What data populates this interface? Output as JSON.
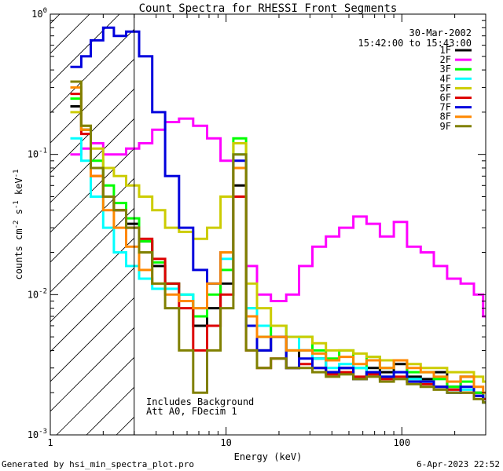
{
  "chart_data": {
    "type": "line",
    "title": "Count Spectra for RHESSI Front Segments",
    "xlabel": "Energy (keV)",
    "ylabel": "counts cm",
    "ylabel_sup1": "-2",
    "ylabel_mid": " s",
    "ylabel_sup2": "-1",
    "ylabel_end": " keV",
    "ylabel_sup3": "-1",
    "x_scale": "log",
    "y_scale": "log",
    "xlim": [
      1,
      300
    ],
    "ylim": [
      0.001,
      1
    ],
    "x_ticks": [
      {
        "value": 1,
        "label": "1"
      },
      {
        "value": 10,
        "label": "10"
      },
      {
        "value": 100,
        "label": "100"
      }
    ],
    "y_ticks": [
      {
        "value": 1,
        "base": "10",
        "exp": "0"
      },
      {
        "value": 0.1,
        "base": "10",
        "exp": "-1"
      },
      {
        "value": 0.01,
        "base": "10",
        "exp": "-2"
      },
      {
        "value": 0.001,
        "base": "10",
        "exp": "-3"
      }
    ],
    "shaded_region": {
      "from": 1,
      "to": 3
    },
    "annotations": {
      "date": "30-Mar-2002",
      "time_range": "15:42:00 to 15:43:00",
      "note1": "Includes Background",
      "note2": "Att A0, FDecim 1"
    },
    "legend_position": "top-right",
    "series": [
      {
        "name": "1F",
        "color": "#000000",
        "x": [
          1.3,
          1.5,
          1.7,
          2.0,
          2.3,
          2.7,
          3.2,
          3.8,
          4.5,
          5.4,
          6.5,
          7.8,
          9.3,
          11,
          13,
          15,
          18,
          22,
          26,
          31,
          37,
          44,
          53,
          63,
          75,
          90,
          107,
          128,
          152,
          181,
          216,
          257,
          290
        ],
        "y": [
          0.22,
          0.15,
          0.08,
          0.05,
          0.04,
          0.032,
          0.024,
          0.016,
          0.012,
          0.009,
          0.006,
          0.008,
          0.012,
          0.06,
          0.006,
          0.004,
          0.005,
          0.003,
          0.004,
          0.0035,
          0.0028,
          0.003,
          0.0025,
          0.003,
          0.0028,
          0.0032,
          0.0026,
          0.0025,
          0.0028,
          0.0022,
          0.0026,
          0.002,
          0.0018
        ]
      },
      {
        "name": "2F",
        "color": "#ff00ff",
        "x": [
          1.3,
          1.5,
          1.7,
          2.0,
          2.3,
          2.7,
          3.2,
          3.8,
          4.5,
          5.4,
          6.5,
          7.8,
          9.3,
          11,
          13,
          15,
          18,
          22,
          26,
          31,
          37,
          44,
          53,
          63,
          75,
          90,
          107,
          128,
          152,
          181,
          216,
          257,
          290
        ],
        "y": [
          0.1,
          0.11,
          0.12,
          0.1,
          0.1,
          0.11,
          0.12,
          0.15,
          0.17,
          0.18,
          0.16,
          0.13,
          0.09,
          0.05,
          0.016,
          0.01,
          0.009,
          0.01,
          0.016,
          0.022,
          0.026,
          0.03,
          0.036,
          0.032,
          0.026,
          0.033,
          0.022,
          0.02,
          0.016,
          0.013,
          0.012,
          0.01,
          0.007
        ]
      },
      {
        "name": "3F",
        "color": "#00ff00",
        "x": [
          1.3,
          1.5,
          1.7,
          2.0,
          2.3,
          2.7,
          3.2,
          3.8,
          4.5,
          5.4,
          6.5,
          7.8,
          9.3,
          11,
          13,
          15,
          18,
          22,
          26,
          31,
          37,
          44,
          53,
          63,
          75,
          90,
          107,
          128,
          152,
          181,
          216,
          257,
          290
        ],
        "y": [
          0.25,
          0.15,
          0.09,
          0.06,
          0.045,
          0.035,
          0.024,
          0.017,
          0.012,
          0.01,
          0.007,
          0.01,
          0.015,
          0.13,
          0.008,
          0.005,
          0.006,
          0.004,
          0.005,
          0.004,
          0.0035,
          0.004,
          0.003,
          0.0036,
          0.003,
          0.0034,
          0.0028,
          0.0028,
          0.0025,
          0.0022,
          0.0024,
          0.002,
          0.0018
        ]
      },
      {
        "name": "4F",
        "color": "#00ffff",
        "x": [
          1.3,
          1.5,
          1.7,
          2.0,
          2.3,
          2.7,
          3.2,
          3.8,
          4.5,
          5.4,
          6.5,
          7.8,
          9.3,
          11,
          13,
          15,
          18,
          22,
          26,
          31,
          37,
          44,
          53,
          63,
          75,
          90,
          107,
          128,
          152,
          181,
          216,
          257,
          290
        ],
        "y": [
          0.13,
          0.09,
          0.05,
          0.03,
          0.02,
          0.016,
          0.013,
          0.011,
          0.011,
          0.01,
          0.008,
          0.012,
          0.018,
          0.1,
          0.008,
          0.006,
          0.006,
          0.005,
          0.004,
          0.0035,
          0.003,
          0.0032,
          0.003,
          0.0028,
          0.0026,
          0.0028,
          0.0025,
          0.0024,
          0.0022,
          0.002,
          0.0021,
          0.0019,
          0.0017
        ]
      },
      {
        "name": "5F",
        "color": "#cccc00",
        "x": [
          1.3,
          1.5,
          1.7,
          2.0,
          2.3,
          2.7,
          3.2,
          3.8,
          4.5,
          5.4,
          6.5,
          7.8,
          9.3,
          11,
          13,
          15,
          18,
          22,
          26,
          31,
          37,
          44,
          53,
          63,
          75,
          90,
          107,
          128,
          152,
          181,
          216,
          257,
          290
        ],
        "y": [
          0.2,
          0.16,
          0.11,
          0.08,
          0.07,
          0.06,
          0.05,
          0.04,
          0.03,
          0.028,
          0.025,
          0.03,
          0.05,
          0.12,
          0.012,
          0.008,
          0.006,
          0.005,
          0.005,
          0.0045,
          0.004,
          0.004,
          0.0038,
          0.0036,
          0.0034,
          0.0034,
          0.0032,
          0.003,
          0.003,
          0.0028,
          0.0028,
          0.0026,
          0.0024
        ]
      },
      {
        "name": "6F",
        "color": "#dd0000",
        "x": [
          1.3,
          1.5,
          1.7,
          2.0,
          2.3,
          2.7,
          3.2,
          3.8,
          4.5,
          5.4,
          6.5,
          7.8,
          9.3,
          11,
          13,
          15,
          18,
          22,
          26,
          31,
          37,
          44,
          53,
          63,
          75,
          90,
          107,
          128,
          152,
          181,
          216,
          257,
          290
        ],
        "y": [
          0.27,
          0.14,
          0.07,
          0.05,
          0.04,
          0.03,
          0.025,
          0.018,
          0.012,
          0.008,
          0.004,
          0.006,
          0.01,
          0.05,
          0.004,
          0.003,
          0.0035,
          0.003,
          0.0032,
          0.003,
          0.0027,
          0.0028,
          0.0026,
          0.0027,
          0.0025,
          0.0026,
          0.0024,
          0.0023,
          0.0022,
          0.0021,
          0.002,
          0.0019,
          0.0018
        ]
      },
      {
        "name": "7F",
        "color": "#0000dd",
        "x": [
          1.3,
          1.5,
          1.7,
          2.0,
          2.3,
          2.7,
          3.2,
          3.8,
          4.5,
          5.4,
          6.5,
          7.8,
          9.3,
          11,
          13,
          15,
          18,
          22,
          26,
          31,
          37,
          44,
          53,
          63,
          75,
          90,
          107,
          128,
          152,
          181,
          216,
          257,
          290
        ],
        "y": [
          0.42,
          0.5,
          0.65,
          0.8,
          0.7,
          0.75,
          0.5,
          0.2,
          0.07,
          0.03,
          0.015,
          0.012,
          0.02,
          0.09,
          0.006,
          0.004,
          0.005,
          0.003,
          0.0035,
          0.003,
          0.0028,
          0.003,
          0.0025,
          0.0028,
          0.0026,
          0.0028,
          0.0024,
          0.0024,
          0.0022,
          0.002,
          0.0022,
          0.0019,
          0.0017
        ]
      },
      {
        "name": "8F",
        "color": "#ff8800",
        "x": [
          1.3,
          1.5,
          1.7,
          2.0,
          2.3,
          2.7,
          3.2,
          3.8,
          4.5,
          5.4,
          6.5,
          7.8,
          9.3,
          11,
          13,
          15,
          18,
          22,
          26,
          31,
          37,
          44,
          53,
          63,
          75,
          90,
          107,
          128,
          152,
          181,
          216,
          257,
          290
        ],
        "y": [
          0.3,
          0.15,
          0.07,
          0.04,
          0.03,
          0.022,
          0.015,
          0.012,
          0.01,
          0.009,
          0.008,
          0.012,
          0.02,
          0.08,
          0.007,
          0.005,
          0.005,
          0.004,
          0.004,
          0.0038,
          0.0034,
          0.0036,
          0.0032,
          0.0034,
          0.003,
          0.0034,
          0.003,
          0.0028,
          0.0026,
          0.0024,
          0.0026,
          0.0022,
          0.002
        ]
      },
      {
        "name": "9F",
        "color": "#808000",
        "x": [
          1.3,
          1.5,
          1.7,
          2.0,
          2.3,
          2.7,
          3.2,
          3.8,
          4.5,
          5.4,
          6.5,
          7.8,
          9.3,
          11,
          13,
          15,
          18,
          22,
          26,
          31,
          37,
          44,
          53,
          63,
          75,
          90,
          107,
          128,
          152,
          181,
          216,
          257,
          290
        ],
        "y": [
          0.33,
          0.16,
          0.08,
          0.05,
          0.04,
          0.03,
          0.02,
          0.012,
          0.008,
          0.004,
          0.002,
          0.004,
          0.008,
          0.1,
          0.004,
          0.003,
          0.0035,
          0.003,
          0.003,
          0.0028,
          0.0026,
          0.0027,
          0.0025,
          0.0026,
          0.0024,
          0.0025,
          0.0023,
          0.0022,
          0.0021,
          0.002,
          0.002,
          0.0018,
          0.0017
        ]
      }
    ]
  },
  "footer": {
    "left": "Generated by hsi_min_spectra_plot.pro",
    "right": "6-Apr-2023 22:52"
  }
}
